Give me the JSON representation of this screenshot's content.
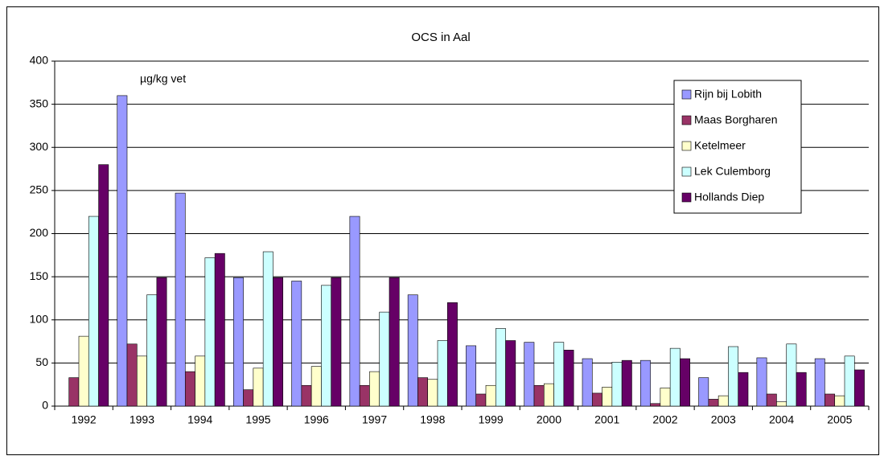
{
  "chart_data": {
    "type": "bar",
    "title": "OCS in Aal",
    "annotation": "µg/kg vet",
    "categories": [
      "1992",
      "1993",
      "1994",
      "1995",
      "1996",
      "1997",
      "1998",
      "1999",
      "2000",
      "2001",
      "2002",
      "2003",
      "2004",
      "2005"
    ],
    "series": [
      {
        "name": "Rijn bij Lobith",
        "color": "#9999ff",
        "values": [
          null,
          360,
          247,
          149,
          145,
          220,
          129,
          70,
          74,
          55,
          53,
          33,
          56,
          55
        ]
      },
      {
        "name": "Maas Borgharen",
        "color": "#993366",
        "values": [
          33,
          72,
          40,
          19,
          24,
          24,
          33,
          14,
          24,
          15,
          3,
          8,
          14,
          14
        ]
      },
      {
        "name": "Ketelmeer",
        "color": "#ffffcc",
        "values": [
          81,
          58,
          58,
          44,
          46,
          40,
          31,
          24,
          26,
          22,
          21,
          12,
          5,
          12
        ]
      },
      {
        "name": "Lek Culemborg",
        "color": "#ccffff",
        "values": [
          220,
          129,
          172,
          179,
          140,
          109,
          76,
          90,
          74,
          51,
          67,
          69,
          72,
          58
        ]
      },
      {
        "name": "Hollands Diep",
        "color": "#660066",
        "values": [
          280,
          149,
          177,
          149,
          149,
          149,
          120,
          76,
          65,
          53,
          55,
          39,
          39,
          42
        ]
      }
    ],
    "ylim": [
      0,
      400
    ],
    "yticks": [
      0,
      50,
      100,
      150,
      200,
      250,
      300,
      350,
      400
    ],
    "grid": true
  }
}
